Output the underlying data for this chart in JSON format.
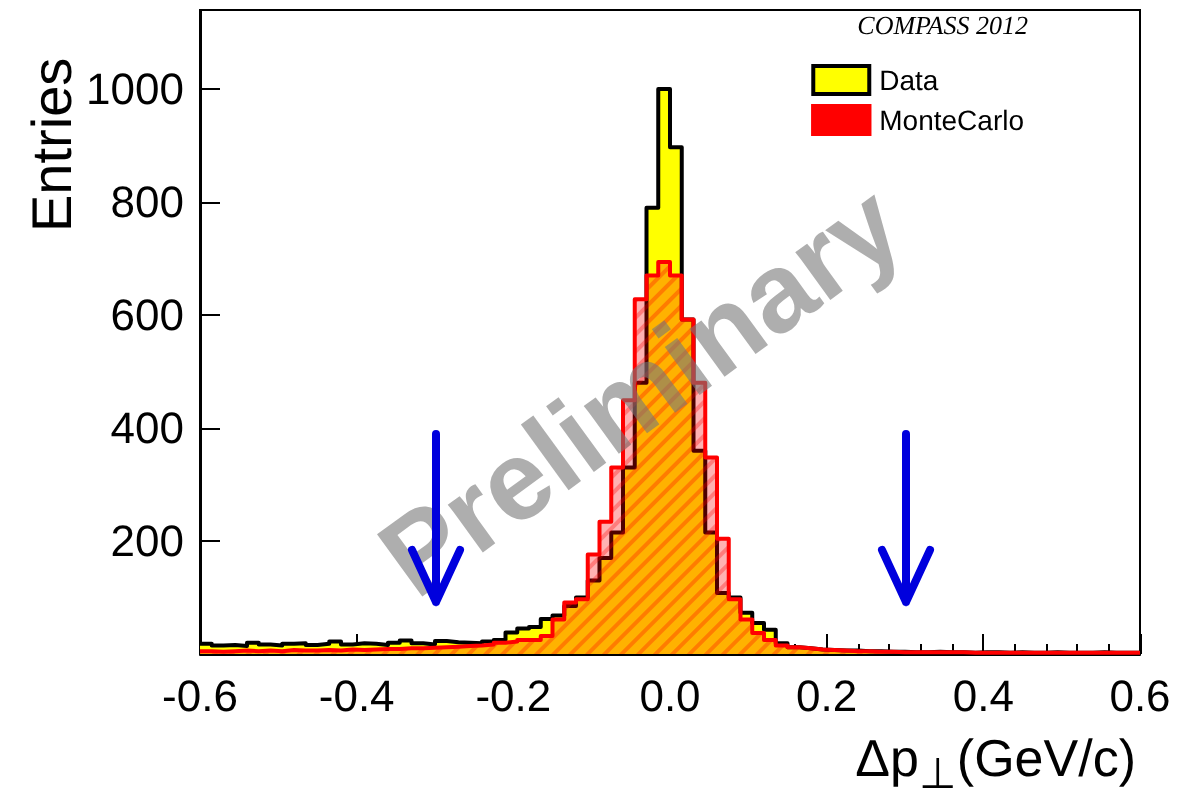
{
  "chart_data": {
    "type": "histogram",
    "xlabel": "Δp$_{⊥}$(GeV/c)",
    "ylabel": "Entries",
    "legend_title": "COMPASS 2012",
    "annotations": [
      "Preliminary"
    ],
    "bins": [
      -0.6,
      -0.585,
      -0.57,
      -0.555,
      -0.54,
      -0.525,
      -0.51,
      -0.495,
      -0.48,
      -0.465,
      -0.45,
      -0.435,
      -0.42,
      -0.405,
      -0.39,
      -0.375,
      -0.36,
      -0.345,
      -0.33,
      -0.315,
      -0.3,
      -0.285,
      -0.27,
      -0.255,
      -0.24,
      -0.225,
      -0.21,
      -0.195,
      -0.18,
      -0.165,
      -0.15,
      -0.135,
      -0.12,
      -0.105,
      -0.09,
      -0.075,
      -0.06,
      -0.045,
      -0.03,
      -0.015,
      0,
      0.015,
      0.03,
      0.045,
      0.06,
      0.075,
      0.09,
      0.105,
      0.12,
      0.135,
      0.15,
      0.165,
      0.18,
      0.195,
      0.21,
      0.225,
      0.24,
      0.255,
      0.27,
      0.285,
      0.3,
      0.315,
      0.33,
      0.345,
      0.36,
      0.375,
      0.39,
      0.405,
      0.42,
      0.435,
      0.45,
      0.465,
      0.48,
      0.495,
      0.51,
      0.525,
      0.54,
      0.555,
      0.57,
      0.585,
      0.6
    ],
    "series": [
      {
        "name": "Data",
        "color": "#ffff00",
        "values": [
          18,
          15,
          16,
          14,
          20,
          17,
          15,
          18,
          19,
          16,
          18,
          22,
          17,
          19,
          18,
          16,
          20,
          24,
          19,
          17,
          23,
          21,
          20,
          19,
          22,
          25,
          38,
          45,
          48,
          62,
          68,
          85,
          100,
          130,
          170,
          215,
          330,
          480,
          790,
          1000,
          897,
          592,
          360,
          215,
          108,
          100,
          73,
          55,
          43,
          19,
          12,
          10,
          8,
          7,
          6,
          6,
          5,
          5,
          4,
          4,
          3,
          3,
          4,
          3,
          3,
          2,
          3,
          3,
          2,
          3,
          2,
          2,
          3,
          2,
          2,
          2,
          3,
          2,
          2,
          2
        ]
      },
      {
        "name": "MonteCarlo",
        "color": "#ff0000",
        "values": [
          5,
          4,
          5,
          6,
          5,
          6,
          5,
          7,
          6,
          6,
          7,
          6,
          8,
          7,
          8,
          9,
          9,
          10,
          10,
          11,
          12,
          13,
          14,
          15,
          17,
          20,
          22,
          25,
          25,
          32,
          61,
          91,
          97,
          176,
          234,
          330,
          449,
          628,
          670,
          694,
          670,
          592,
          480,
          348,
          204,
          97,
          61,
          37,
          25,
          15,
          12,
          10,
          8,
          7,
          6,
          5,
          5,
          4,
          4,
          3,
          3,
          3,
          3,
          3,
          3,
          2,
          2,
          2,
          2,
          2,
          2,
          2,
          2,
          2,
          2,
          2,
          2,
          2,
          2,
          2
        ]
      }
    ],
    "xlim": [
      -0.6,
      0.6
    ],
    "xticks": [
      -0.6,
      -0.4,
      -0.2,
      {
        "value": 0,
        "label": "0.0"
      },
      0.2,
      0.4,
      0.6
    ],
    "ylim": [
      0,
      1140
    ],
    "yticks": [
      200,
      400,
      600,
      800,
      1000
    ],
    "legend": "top right",
    "grid": false
  }
}
